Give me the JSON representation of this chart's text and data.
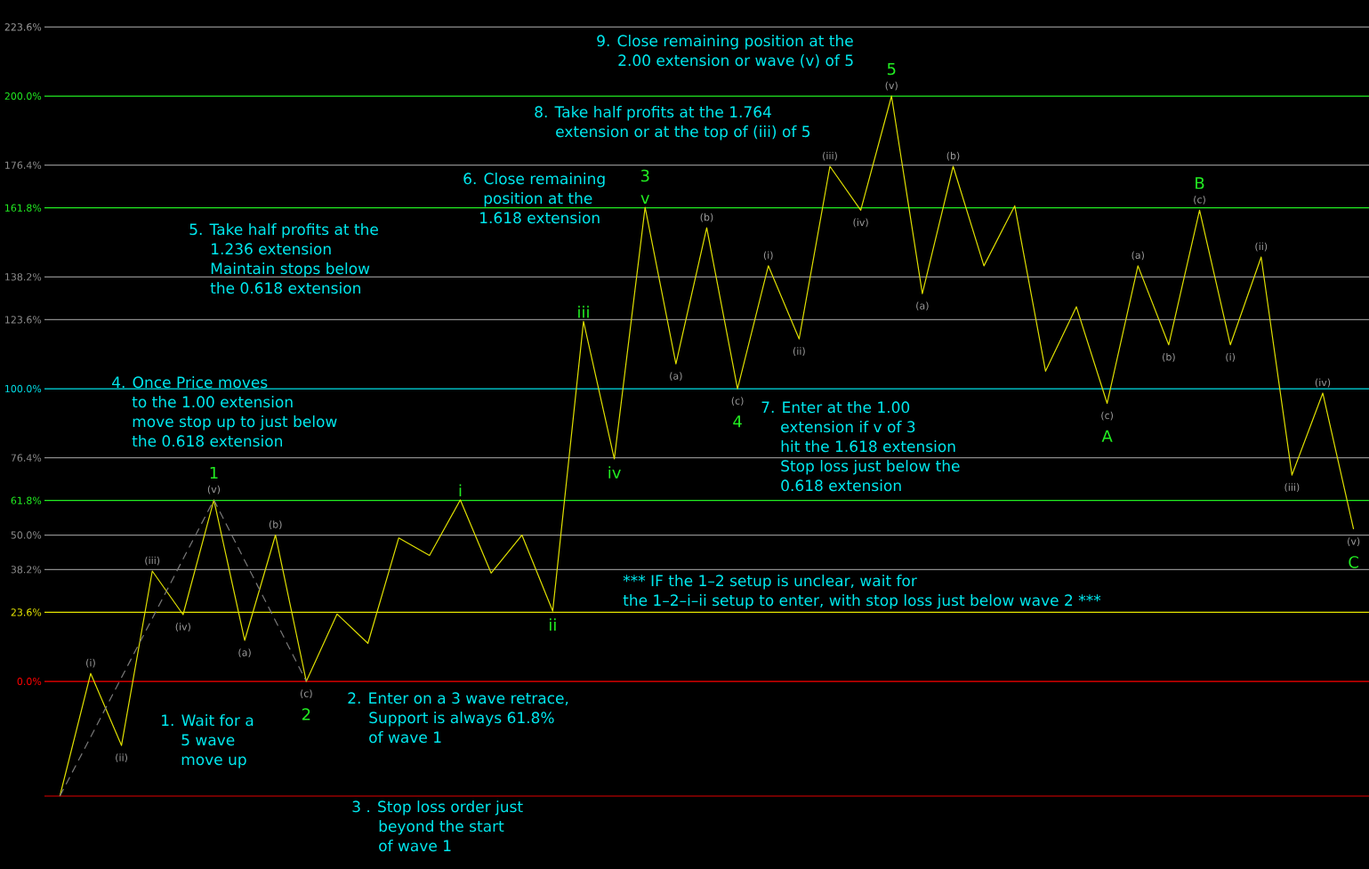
{
  "chart_data": {
    "type": "line",
    "ylim": [
      -39.2,
      223.6
    ],
    "tick_labels": "y",
    "categories": [
      null,
      null,
      null,
      null,
      null,
      null,
      null,
      null,
      null,
      null,
      null,
      null,
      null,
      null,
      null,
      null,
      null,
      null,
      null,
      null,
      null,
      null,
      null,
      null,
      null,
      null,
      null,
      null,
      null,
      null,
      null,
      null,
      null,
      null,
      null,
      null,
      null,
      null,
      null,
      null,
      null,
      null,
      null
    ],
    "yticks": [
      {
        "value": 0,
        "label": "0.0%"
      },
      {
        "value": 23.6,
        "label": "23.6%"
      },
      {
        "value": 38.2,
        "label": "38.2%"
      },
      {
        "value": 50,
        "label": "50.0%"
      },
      {
        "value": 61.8,
        "label": "61.8%"
      },
      {
        "value": 76.4,
        "label": "76.4%"
      },
      {
        "value": 100,
        "label": "100.0%"
      },
      {
        "value": 123.6,
        "label": "123.6%"
      },
      {
        "value": 138.2,
        "label": "138.2%"
      },
      {
        "value": 161.8,
        "label": "161.8%"
      },
      {
        "value": 176.4,
        "label": "176.4%"
      },
      {
        "value": 200,
        "label": "200.0%"
      },
      {
        "value": 223.6,
        "label": "223.6%"
      }
    ],
    "series": [
      {
        "color": "#e0e000",
        "values": [
          -39.2,
          2.7,
          -21.9,
          37.7,
          22.8,
          62,
          14,
          50,
          0,
          23,
          13,
          49,
          43,
          62,
          37,
          50,
          24,
          123,
          76,
          162,
          108.5,
          155,
          100,
          142,
          117,
          176,
          161,
          200,
          132.5,
          176,
          142,
          162.5,
          106,
          128,
          95,
          142,
          115,
          161,
          115,
          145,
          70.5,
          98.5,
          52
        ],
        "value_labels": [
          null,
          "(i)",
          "(ii)",
          "(iii)",
          "(iv)",
          "(v)",
          "(a)",
          "(b)",
          "(c)",
          null,
          null,
          null,
          null,
          null,
          null,
          null,
          null,
          null,
          null,
          null,
          "(a)",
          "(b)",
          "(c)",
          "(i)",
          "(ii)",
          "(iii)",
          "(iv)",
          "(v)",
          "(a)",
          "(b)",
          null,
          null,
          null,
          null,
          "(c)",
          "(a)",
          "(b)",
          "(c)",
          "(i)",
          "(ii)",
          "(iii)",
          "(iv)",
          "(v)"
        ]
      },
      {
        "color": "#7a7a7a",
        "line_style": "dashed",
        "values": [
          -39.2,
          -19,
          1.3,
          21.5,
          41.8,
          62,
          41.3,
          20.7,
          0,
          null,
          null,
          null,
          null,
          null,
          null,
          null,
          null,
          null,
          null,
          null,
          null,
          null,
          null,
          null,
          null,
          null,
          null,
          null,
          null,
          null,
          null,
          null,
          null,
          null,
          null,
          null,
          null,
          null,
          null,
          null,
          null,
          null,
          null
        ]
      }
    ],
    "ref_lines": [
      {
        "axis": "y",
        "value": -39.2,
        "color": "#e00000"
      },
      {
        "axis": "y",
        "value": 0,
        "color": "#ff0000"
      },
      {
        "axis": "y",
        "value": 23.6,
        "color": "#e6e600"
      },
      {
        "axis": "y",
        "value": 38.2,
        "color": "#8c8c8c"
      },
      {
        "axis": "y",
        "value": 50,
        "color": "#8c8c8c"
      },
      {
        "axis": "y",
        "value": 61.8,
        "color": "#22ee22"
      },
      {
        "axis": "y",
        "value": 76.4,
        "color": "#8c8c8c"
      },
      {
        "axis": "y",
        "value": 100,
        "color": "#00e0e8"
      },
      {
        "axis": "y",
        "value": 123.6,
        "color": "#8c8c8c"
      },
      {
        "axis": "y",
        "value": 138.2,
        "color": "#8c8c8c"
      },
      {
        "axis": "y",
        "value": 161.8,
        "color": "#22ee22"
      },
      {
        "axis": "y",
        "value": 176.4,
        "color": "#8c8c8c"
      },
      {
        "axis": "y",
        "value": 200,
        "color": "#22ee22"
      }
    ],
    "annotations": [
      "1. Wait for a",
      "5 wave",
      "move up",
      "2. Enter on a 3 wave retrace,",
      "Support is always 61.8%",
      "of wave 1",
      "3 . Stop loss order just",
      "beyond the start",
      "of wave 1",
      "4. Once Price moves",
      "to the 1.00 extension",
      "move stop up to just below",
      "the 0.618 extension",
      "5. Take half profits at the",
      "1.236 extension",
      "Maintain stops below",
      "the 0.618 extension",
      "6. Close remaining",
      "position at the",
      "1.618 extension",
      "7. Enter at the 1.00",
      "extension if v of 3",
      "hit the 1.618 extension",
      "Stop loss just below the",
      "0.618 extension",
      "8. Take half profits at the 1.764",
      "extension or at the top of (iii) of 5",
      "9. Close remaining position at the",
      "2.00 extension or wave (v) of 5",
      "*** IF the 1–2 setup is unclear, wait for",
      "the 1–2–i–ii setup to enter, with stop loss just below wave 2 ***",
      {
        "text": "1",
        "y": 62
      },
      {
        "text": "2",
        "y": 0
      },
      {
        "text": "i",
        "y": 62
      },
      {
        "text": "ii",
        "y": 24
      },
      {
        "text": "iii",
        "y": 123
      },
      {
        "text": "iv",
        "y": 76
      },
      {
        "text": "v",
        "y": 162
      },
      {
        "text": "3",
        "y": 162
      },
      {
        "text": "4",
        "y": 100
      },
      {
        "text": "5",
        "y": 200
      },
      {
        "text": "A",
        "y": 95
      },
      {
        "text": "B",
        "y": 161
      },
      {
        "text": "C",
        "y": 52
      }
    ]
  }
}
